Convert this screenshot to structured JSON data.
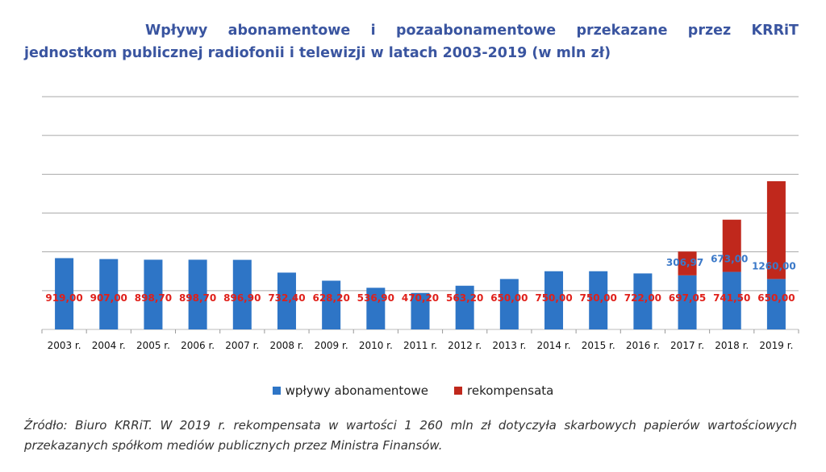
{
  "title_line1": "Wpływy abonamentowe i pozaabonamentowe przekazane przez KRRiT",
  "title_line2": "jednostkom publicznej radiofonii i telewizji w latach 2003-2019 (w mln zł)",
  "source_text": "Źródło: Biuro KRRiT. W 2019 r. rekompensata w wartości 1 260 mln zł dotyczyła skarbowych papierów wartościowych przekazanych spółkom mediów publicznych przez Ministra Finansów.",
  "colors": {
    "blue": "#2e75c6",
    "red": "#c0281c",
    "title": "#3a55a0",
    "grid": "#aaaaaa",
    "blue_label": "#3a78c8",
    "red_label": "#e0201a"
  },
  "chart_data": {
    "type": "bar",
    "stacked": true,
    "grid": true,
    "legend_position": "bottom",
    "ylim": [
      0,
      3000
    ],
    "categories": [
      "2003 r.",
      "2004 r.",
      "2005 r.",
      "2006 r.",
      "2007 r.",
      "2008 r.",
      "2009 r.",
      "2010 r.",
      "2011 r.",
      "2012 r.",
      "2013 r.",
      "2014 r.",
      "2015 r.",
      "2016 r.",
      "2017 r.",
      "2018 r.",
      "2019 r."
    ],
    "series": [
      {
        "name": "wpływy abonamentowe",
        "values": [
          919.0,
          907.0,
          898.7,
          898.7,
          896.9,
          732.4,
          628.2,
          536.9,
          470.2,
          563.2,
          650.0,
          750.0,
          750.0,
          722.0,
          697.05,
          741.5,
          650.0
        ],
        "labels": [
          "919,00",
          "907,00",
          "898,70",
          "898,70",
          "896,90",
          "732,40",
          "628,20",
          "536,90",
          "470,20",
          "563,20",
          "650,00",
          "750,00",
          "750,00",
          "722,00",
          "697,05",
          "741,50",
          "650,00"
        ]
      },
      {
        "name": "rekompensata",
        "values": [
          null,
          null,
          null,
          null,
          null,
          null,
          null,
          null,
          null,
          null,
          null,
          null,
          null,
          null,
          306.97,
          673.0,
          1260.0
        ],
        "labels": [
          null,
          null,
          null,
          null,
          null,
          null,
          null,
          null,
          null,
          null,
          null,
          null,
          null,
          null,
          "306,97",
          "673,00",
          "1260,00"
        ]
      }
    ]
  }
}
